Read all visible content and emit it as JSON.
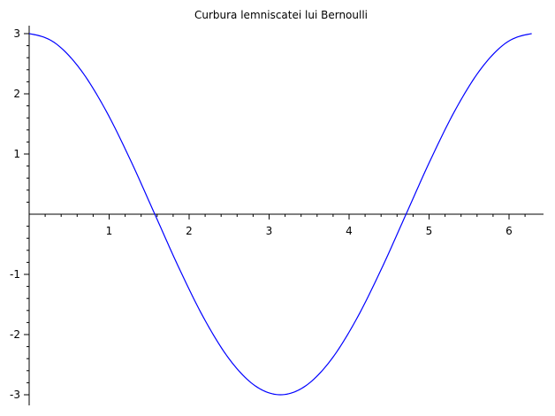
{
  "chart_data": {
    "type": "line",
    "title": "Curbura lemniscatei lui Bernoulli",
    "xlabel": "",
    "ylabel": "",
    "xlim": [
      0,
      6.2832
    ],
    "ylim": [
      -3,
      3
    ],
    "grid": false,
    "x_ticks": [
      "1",
      "2",
      "3",
      "4",
      "5",
      "6"
    ],
    "y_ticks": [
      "3",
      "2",
      "1",
      "-1",
      "-2",
      "-3"
    ],
    "series": [
      {
        "color": "#0000ff",
        "x": [
          0,
          0.3142,
          0.6283,
          0.9425,
          1.2566,
          1.5708,
          1.885,
          2.1991,
          2.5133,
          2.8274,
          3.1416,
          3.4558,
          3.7699,
          4.0841,
          4.3982,
          4.7124,
          5.0265,
          5.3407,
          5.6549,
          5.969,
          6.2832
        ],
        "y": [
          3.0,
          2.853,
          2.427,
          1.763,
          0.927,
          0.0,
          -0.927,
          -1.763,
          -2.427,
          -2.853,
          -3.0,
          -2.853,
          -2.427,
          -1.763,
          -0.927,
          0.0,
          0.927,
          1.763,
          2.427,
          2.853,
          3.0
        ]
      }
    ]
  }
}
